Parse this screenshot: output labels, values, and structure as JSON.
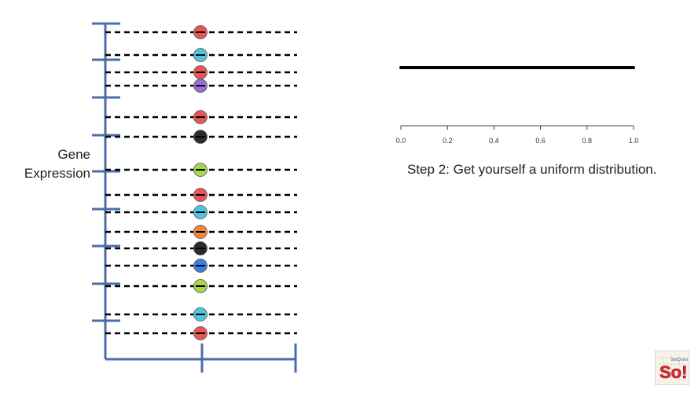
{
  "y_axis_label": [
    "Gene",
    "Expression"
  ],
  "step_text": "Step 2: Get yourself a uniform distribution.",
  "uniform_axis": {
    "ticks": [
      "0.0",
      "0.2",
      "0.4",
      "0.6",
      "0.8",
      "1.0"
    ],
    "range": [
      0,
      1
    ]
  },
  "logo": {
    "text": "So!",
    "small_text": "StatQuest"
  },
  "colors": {
    "axis": "#4a6fa8",
    "red": "#e85555",
    "cyan": "#4fc6e0",
    "purple": "#9a6bd0",
    "black": "#2b2b2b",
    "green": "#a6d64a",
    "orange": "#f08a3a",
    "blue": "#3b7fe0"
  },
  "samples": [
    {
      "color": "red"
    },
    {
      "color": "cyan"
    },
    {
      "color": "red"
    },
    {
      "color": "purple"
    },
    {
      "color": "red"
    },
    {
      "color": "black"
    },
    {
      "color": "green"
    },
    {
      "color": "red"
    },
    {
      "color": "cyan"
    },
    {
      "color": "orange"
    },
    {
      "color": "black"
    },
    {
      "color": "blue"
    },
    {
      "color": "green"
    },
    {
      "color": "cyan"
    },
    {
      "color": "red"
    }
  ]
}
